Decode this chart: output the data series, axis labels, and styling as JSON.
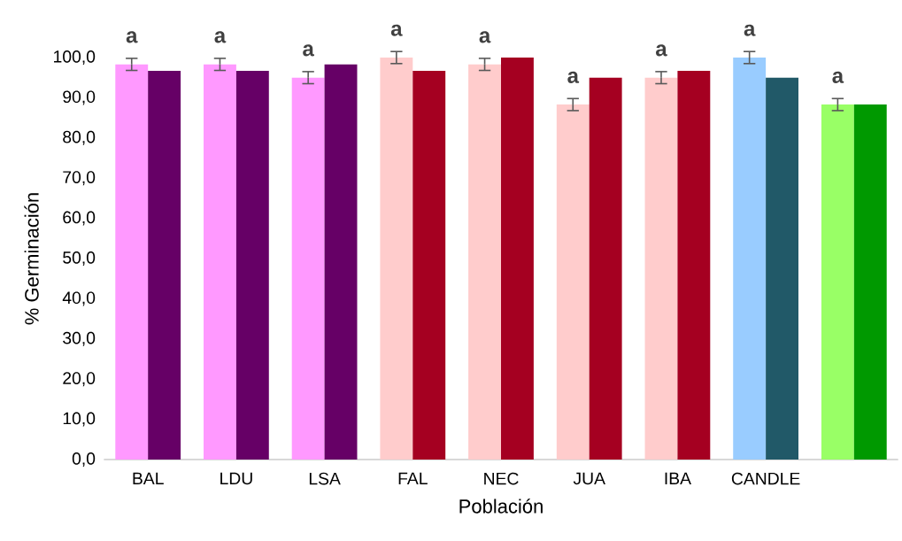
{
  "chart_data": {
    "type": "bar",
    "xlabel": "Población",
    "ylabel": "% Germinación",
    "categories": [
      "BAL",
      "LDU",
      "LSA",
      "FAL",
      "NEC",
      "JUA",
      "IBA",
      "CANDLE",
      null
    ],
    "series": [
      {
        "colors": [
          "#ff99ff",
          "#ff99ff",
          "#ff99ff",
          "#ffcccc",
          "#ffcccc",
          "#ffcccc",
          "#ffcccc",
          "#99ccff",
          "#99ff66"
        ],
        "values": [
          98.3,
          98.3,
          95.0,
          100.0,
          98.3,
          88.3,
          95.0,
          100.0,
          88.3
        ],
        "errors": [
          1.5,
          1.5,
          1.5,
          1.5,
          1.5,
          1.5,
          1.5,
          1.5,
          1.5
        ]
      },
      {
        "colors": [
          "#660066",
          "#660066",
          "#660066",
          "#a50021",
          "#a50021",
          "#a50021",
          "#a50021",
          "#215968",
          "#009900"
        ],
        "values": [
          96.7,
          96.7,
          98.3,
          96.7,
          100.0,
          95.0,
          96.7,
          95.0,
          88.3
        ]
      }
    ],
    "ylim": [
      0,
      100
    ],
    "yticks": [
      {
        "value": 0,
        "label": "0,0"
      },
      {
        "value": 10,
        "label": "10,0"
      },
      {
        "value": 20,
        "label": "20,0"
      },
      {
        "value": 30,
        "label": "30,0"
      },
      {
        "value": 40,
        "label": "40,0"
      },
      {
        "value": 50,
        "label": "50,0"
      },
      {
        "value": 60,
        "label": "60,0"
      },
      {
        "value": 70,
        "label": "70,0"
      },
      {
        "value": 80,
        "label": "80,0"
      },
      {
        "value": 90,
        "label": "90,0"
      },
      {
        "value": 100,
        "label": "100,0"
      }
    ],
    "grid": false,
    "annotations": [
      "a",
      "a",
      "a",
      "a",
      "a",
      "a",
      "a",
      "a",
      "a"
    ]
  }
}
